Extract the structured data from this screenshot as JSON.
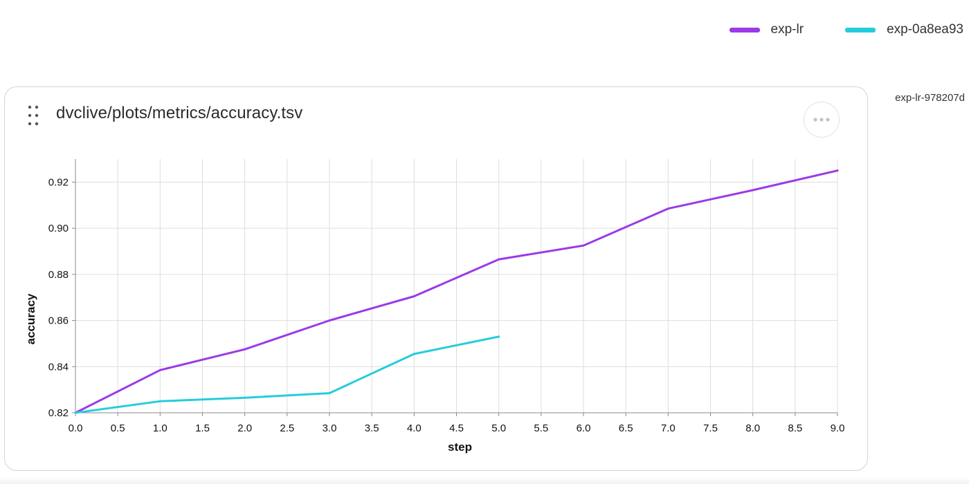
{
  "legend": {
    "items": [
      {
        "label": "exp-lr",
        "color": "#9b3ae6"
      },
      {
        "label": "exp-0a8ea93",
        "color": "#25ccdc"
      }
    ]
  },
  "side_label": "exp-lr-978207d",
  "plot": {
    "title": "dvclive/plots/metrics/accuracy.tsv",
    "drag_icon": "drag-handle-icon",
    "more_icon": "more-horizontal-icon"
  },
  "chart_data": {
    "type": "line",
    "xlabel": "step",
    "ylabel": "accuracy",
    "xlim": [
      0,
      9
    ],
    "ylim": [
      0.82,
      0.93
    ],
    "x_ticks": [
      "0.0",
      "0.5",
      "1.0",
      "1.5",
      "2.0",
      "2.5",
      "3.0",
      "3.5",
      "4.0",
      "4.5",
      "5.0",
      "5.5",
      "6.0",
      "6.5",
      "7.0",
      "7.5",
      "8.0",
      "8.5",
      "9.0"
    ],
    "y_ticks": [
      "0.82",
      "0.84",
      "0.86",
      "0.88",
      "0.90",
      "0.92"
    ],
    "grid": true,
    "series": [
      {
        "name": "exp-lr",
        "color": "#9b3ae6",
        "x": [
          0,
          1,
          2,
          3,
          4,
          5,
          6,
          7,
          8,
          9
        ],
        "y": [
          0.82,
          0.8385,
          0.8475,
          0.86,
          0.8705,
          0.8865,
          0.8925,
          0.9085,
          0.9165,
          0.925
        ]
      },
      {
        "name": "exp-0a8ea93",
        "color": "#25ccdc",
        "x": [
          0,
          1,
          2,
          3,
          4,
          5
        ],
        "y": [
          0.82,
          0.825,
          0.8265,
          0.8285,
          0.8455,
          0.853
        ]
      }
    ]
  }
}
